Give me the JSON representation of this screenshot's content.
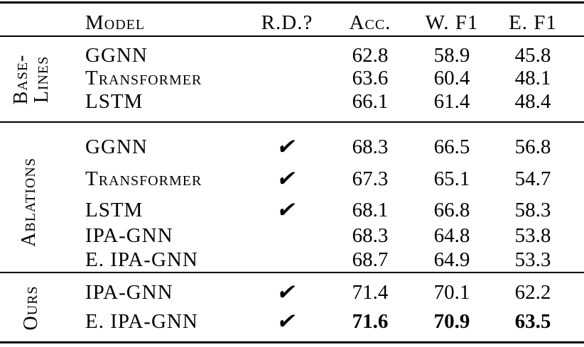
{
  "table": {
    "check_glyph": "✔",
    "columns": {
      "model": "Model",
      "rd": "R.D.?",
      "acc": "Acc.",
      "wf1": "W. F1",
      "ef1": "E. F1"
    },
    "sections": [
      {
        "name": "baselines",
        "label_lines": [
          "Base-",
          "Lines"
        ],
        "rows": [
          {
            "model": "GGNN",
            "rd": false,
            "acc": "62.8",
            "wf1": "58.9",
            "ef1": "45.8",
            "bold": false
          },
          {
            "model": "Transformer",
            "rd": false,
            "acc": "63.6",
            "wf1": "60.4",
            "ef1": "48.1",
            "bold": false
          },
          {
            "model": "LSTM",
            "rd": false,
            "acc": "66.1",
            "wf1": "61.4",
            "ef1": "48.4",
            "bold": false
          }
        ]
      },
      {
        "name": "ablations",
        "label_lines": [
          "Ablations"
        ],
        "rows": [
          {
            "model": "GGNN",
            "rd": true,
            "acc": "68.3",
            "wf1": "66.5",
            "ef1": "56.8",
            "bold": false
          },
          {
            "model": "Transformer",
            "rd": true,
            "acc": "67.3",
            "wf1": "65.1",
            "ef1": "54.7",
            "bold": false
          },
          {
            "model": "LSTM",
            "rd": true,
            "acc": "68.1",
            "wf1": "66.8",
            "ef1": "58.3",
            "bold": false
          },
          {
            "model": "IPA-GNN",
            "rd": false,
            "acc": "68.3",
            "wf1": "64.8",
            "ef1": "53.8",
            "bold": false
          },
          {
            "model": "E. IPA-GNN",
            "rd": false,
            "acc": "68.7",
            "wf1": "64.9",
            "ef1": "53.3",
            "bold": false
          }
        ]
      },
      {
        "name": "ours",
        "label_lines": [
          "Ours"
        ],
        "rows": [
          {
            "model": "IPA-GNN",
            "rd": true,
            "acc": "71.4",
            "wf1": "70.1",
            "ef1": "62.2",
            "bold": false
          },
          {
            "model": "E. IPA-GNN",
            "rd": true,
            "acc": "71.6",
            "wf1": "70.9",
            "ef1": "63.5",
            "bold": true
          }
        ]
      }
    ]
  }
}
